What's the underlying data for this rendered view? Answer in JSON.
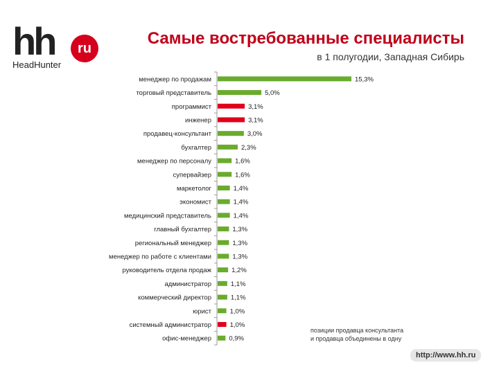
{
  "logo": {
    "hh": "hh",
    "ru": "ru",
    "brand": "HeadHunter"
  },
  "header": {
    "title": "Самые востребованные специалисты",
    "subtitle": "в 1 полугодии, Западная Сибирь"
  },
  "footnote": {
    "line1": "позиции продавца консультанта",
    "line2": "и продавца объединены в одну"
  },
  "footer": {
    "url": "http://www.hh.ru"
  },
  "colors": {
    "green": "#6aab2e",
    "red": "#e0001b",
    "axis": "#999999"
  },
  "chart_data": {
    "type": "bar",
    "orientation": "horizontal",
    "title": "Самые востребованные специалисты",
    "subtitle": "в 1 полугодии, Западная Сибирь",
    "xlim": [
      0,
      15.3
    ],
    "grid": false,
    "categories": [
      "менеджер по продажам",
      "торговый представитель",
      "программист",
      "инженер",
      "продавец-консультант",
      "бухгалтер",
      "менеджер по персоналу",
      "супервайзер",
      "маркетолог",
      "экономист",
      "медицинский представитель",
      "главный бухгалтер",
      "региональный менеджер",
      "менеджер по работе с клиентами",
      "руководитель отдела продаж",
      "администратор",
      "коммерческий директор",
      "юрист",
      "системный администратор",
      "офис-менеджер"
    ],
    "values": [
      15.3,
      5.0,
      3.1,
      3.1,
      3.0,
      2.3,
      1.6,
      1.6,
      1.4,
      1.4,
      1.4,
      1.3,
      1.3,
      1.3,
      1.2,
      1.1,
      1.1,
      1.0,
      1.0,
      0.9
    ],
    "labels": [
      "15,3%",
      "5,0%",
      "3,1%",
      "3,1%",
      "3,0%",
      "2,3%",
      "1,6%",
      "1,6%",
      "1,4%",
      "1,4%",
      "1,4%",
      "1,3%",
      "1,3%",
      "1,3%",
      "1,2%",
      "1,1%",
      "1,1%",
      "1,0%",
      "1,0%",
      "0,9%"
    ],
    "highlight": [
      "green",
      "green",
      "red",
      "red",
      "green",
      "green",
      "green",
      "green",
      "green",
      "green",
      "green",
      "green",
      "green",
      "green",
      "green",
      "green",
      "green",
      "green",
      "red",
      "green"
    ]
  }
}
